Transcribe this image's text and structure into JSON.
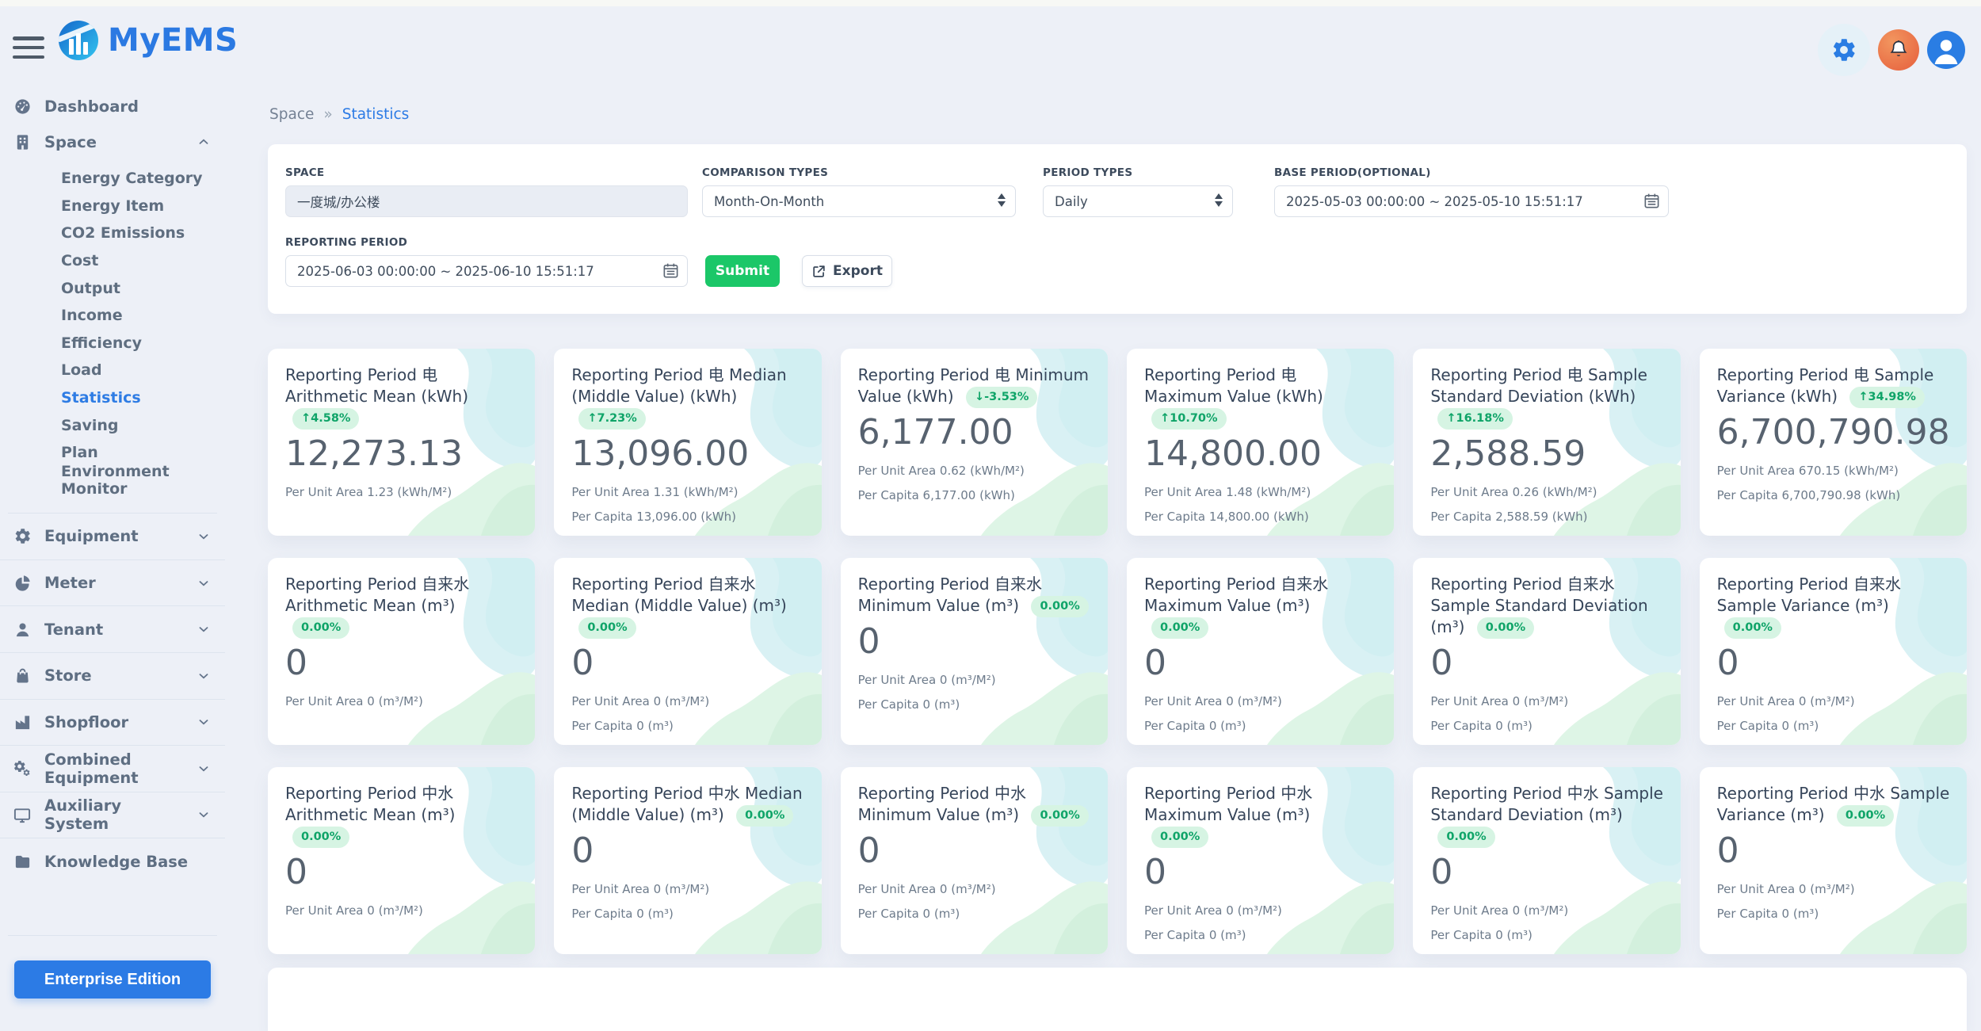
{
  "topbar": {
    "brand": "MyEMS",
    "icons": {
      "settings": "gear-icon",
      "notifications": "bell-icon",
      "account": "user-icon"
    }
  },
  "sidebar": {
    "dashboard": {
      "label": "Dashboard",
      "icon": "gauge-icon"
    },
    "space": {
      "label": "Space",
      "icon": "building-icon",
      "expanded": true,
      "active_child": "Statistics",
      "children": [
        "Energy Category",
        "Energy Item",
        "CO2 Emissions",
        "Cost",
        "Output",
        "Income",
        "Efficiency",
        "Load",
        "Statistics",
        "Saving",
        "Plan",
        "Environment Monitor"
      ]
    },
    "groups": [
      {
        "label": "Equipment",
        "icon": "gear-icon",
        "chevron": true
      },
      {
        "label": "Meter",
        "icon": "pie-icon",
        "chevron": true
      },
      {
        "label": "Tenant",
        "icon": "person-icon",
        "chevron": true
      },
      {
        "label": "Store",
        "icon": "bag-icon",
        "chevron": true
      },
      {
        "label": "Shopfloor",
        "icon": "factory-icon",
        "chevron": true
      },
      {
        "label": "Combined Equipment",
        "icon": "gears-icon",
        "chevron": true
      },
      {
        "label": "Auxiliary System",
        "icon": "monitor-icon",
        "chevron": true
      },
      {
        "label": "Knowledge Base",
        "icon": "folder-icon",
        "chevron": false
      }
    ],
    "enterprise_button": "Enterprise Edition"
  },
  "breadcrumb": {
    "root": "Space",
    "separator": "»",
    "current": "Statistics"
  },
  "filters": {
    "space": {
      "label": "SPACE",
      "value": "一度城/办公楼",
      "disabled": true
    },
    "comparison": {
      "label": "COMPARISON TYPES",
      "value": "Month-On-Month"
    },
    "period": {
      "label": "PERIOD TYPES",
      "value": "Daily"
    },
    "base_period": {
      "label": "BASE PERIOD(OPTIONAL)",
      "value": "2025-05-03 00:00:00 ~ 2025-05-10 15:51:17"
    },
    "reporting_period": {
      "label": "REPORTING PERIOD",
      "value": "2025-06-03 00:00:00 ~ 2025-06-10 15:51:17"
    },
    "submit_label": "Submit",
    "export_label": "Export"
  },
  "colors": {
    "accent_blue": "#2c7be5",
    "success_green": "#1bc768",
    "badge_bg": "#d6f4e3",
    "badge_text": "#0fa468",
    "bell_orange": "#e86a44"
  },
  "cards": [
    {
      "title": "Reporting Period 电 Arithmetic Mean (kWh)",
      "badge": "↑4.58%",
      "trend": "up",
      "value": "12,273.13",
      "lines": [
        "Per Unit Area 1.23 (kWh/M²)"
      ]
    },
    {
      "title": "Reporting Period 电 Median (Middle Value) (kWh)",
      "badge": "↑7.23%",
      "trend": "up",
      "value": "13,096.00",
      "lines": [
        "Per Unit Area 1.31 (kWh/M²)",
        "Per Capita 13,096.00 (kWh)"
      ]
    },
    {
      "title": "Reporting Period 电 Minimum Value (kWh)",
      "badge": "↓-3.53%",
      "trend": "down",
      "value": "6,177.00",
      "lines": [
        "Per Unit Area 0.62 (kWh/M²)",
        "Per Capita 6,177.00 (kWh)"
      ]
    },
    {
      "title": "Reporting Period 电 Maximum Value (kWh)",
      "badge": "↑10.70%",
      "trend": "up",
      "value": "14,800.00",
      "lines": [
        "Per Unit Area 1.48 (kWh/M²)",
        "Per Capita 14,800.00 (kWh)"
      ]
    },
    {
      "title": "Reporting Period 电 Sample Standard Deviation (kWh)",
      "badge": "↑16.18%",
      "trend": "up",
      "value": "2,588.59",
      "lines": [
        "Per Unit Area 0.26 (kWh/M²)",
        "Per Capita 2,588.59 (kWh)"
      ]
    },
    {
      "title": "Reporting Period 电 Sample Variance (kWh)",
      "badge": "↑34.98%",
      "trend": "up",
      "value": "6,700,790.98",
      "lines": [
        "Per Unit Area 670.15 (kWh/M²)",
        "Per Capita 6,700,790.98 (kWh)"
      ]
    },
    {
      "title": "Reporting Period 自来水 Arithmetic Mean (m³)",
      "badge": "0.00%",
      "trend": "flat",
      "value": "0",
      "lines": [
        "Per Unit Area 0 (m³/M²)"
      ]
    },
    {
      "title": "Reporting Period 自来水 Median (Middle Value) (m³)",
      "badge": "0.00%",
      "trend": "flat",
      "value": "0",
      "lines": [
        "Per Unit Area 0 (m³/M²)",
        "Per Capita 0 (m³)"
      ]
    },
    {
      "title": "Reporting Period 自来水 Minimum Value (m³)",
      "badge": "0.00%",
      "trend": "flat",
      "value": "0",
      "lines": [
        "Per Unit Area 0 (m³/M²)",
        "Per Capita 0 (m³)"
      ]
    },
    {
      "title": "Reporting Period 自来水 Maximum Value (m³)",
      "badge": "0.00%",
      "trend": "flat",
      "value": "0",
      "lines": [
        "Per Unit Area 0 (m³/M²)",
        "Per Capita 0 (m³)"
      ]
    },
    {
      "title": "Reporting Period 自来水 Sample Standard Deviation (m³)",
      "badge": "0.00%",
      "trend": "flat",
      "value": "0",
      "lines": [
        "Per Unit Area 0 (m³/M²)",
        "Per Capita 0 (m³)"
      ]
    },
    {
      "title": "Reporting Period 自来水 Sample Variance (m³)",
      "badge": "0.00%",
      "trend": "flat",
      "value": "0",
      "lines": [
        "Per Unit Area 0 (m³/M²)",
        "Per Capita 0 (m³)"
      ]
    },
    {
      "title": "Reporting Period 中水 Arithmetic Mean (m³)",
      "badge": "0.00%",
      "trend": "flat",
      "value": "0",
      "lines": [
        "Per Unit Area 0 (m³/M²)"
      ]
    },
    {
      "title": "Reporting Period 中水 Median (Middle Value) (m³)",
      "badge": "0.00%",
      "trend": "flat",
      "value": "0",
      "lines": [
        "Per Unit Area 0 (m³/M²)",
        "Per Capita 0 (m³)"
      ]
    },
    {
      "title": "Reporting Period 中水 Minimum Value (m³)",
      "badge": "0.00%",
      "trend": "flat",
      "value": "0",
      "lines": [
        "Per Unit Area 0 (m³/M²)",
        "Per Capita 0 (m³)"
      ]
    },
    {
      "title": "Reporting Period 中水 Maximum Value (m³)",
      "badge": "0.00%",
      "trend": "flat",
      "value": "0",
      "lines": [
        "Per Unit Area 0 (m³/M²)",
        "Per Capita 0 (m³)"
      ]
    },
    {
      "title": "Reporting Period 中水 Sample Standard Deviation (m³)",
      "badge": "0.00%",
      "trend": "flat",
      "value": "0",
      "lines": [
        "Per Unit Area 0 (m³/M²)",
        "Per Capita 0 (m³)"
      ]
    },
    {
      "title": "Reporting Period 中水 Sample Variance (m³)",
      "badge": "0.00%",
      "trend": "flat",
      "value": "0",
      "lines": [
        "Per Unit Area 0 (m³/M²)",
        "Per Capita 0 (m³)"
      ]
    }
  ]
}
